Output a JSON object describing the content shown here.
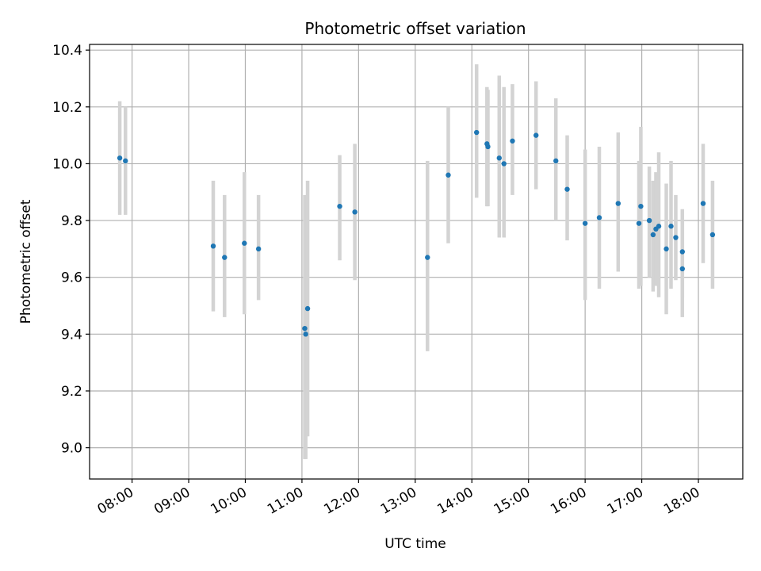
{
  "chart_data": {
    "type": "scatter",
    "title": "Photometric offset variation",
    "xlabel": "UTC time",
    "ylabel": "Photometric offset",
    "grid": true,
    "xlim": [
      "07:15",
      "18:47"
    ],
    "ylim": [
      8.89,
      10.42
    ],
    "x_ticks": [
      "08:00",
      "09:00",
      "10:00",
      "11:00",
      "12:00",
      "13:00",
      "14:00",
      "15:00",
      "16:00",
      "17:00",
      "18:00"
    ],
    "y_ticks": [
      "9.0",
      "9.2",
      "9.4",
      "9.6",
      "9.8",
      "10.0",
      "10.2",
      "10.4"
    ],
    "colors": {
      "point": "#1f77b4",
      "errorbar": "#d3d3d3",
      "grid": "#b0b0b0"
    },
    "points": [
      {
        "x": "07:47",
        "y": 10.02,
        "ylow": 9.82,
        "yhigh": 10.22
      },
      {
        "x": "07:53",
        "y": 10.01,
        "ylow": 9.82,
        "yhigh": 10.2
      },
      {
        "x": "09:26",
        "y": 9.71,
        "ylow": 9.48,
        "yhigh": 9.94
      },
      {
        "x": "09:38",
        "y": 9.67,
        "ylow": 9.46,
        "yhigh": 9.89
      },
      {
        "x": "09:59",
        "y": 9.72,
        "ylow": 9.47,
        "yhigh": 9.97
      },
      {
        "x": "10:14",
        "y": 9.7,
        "ylow": 9.52,
        "yhigh": 9.89
      },
      {
        "x": "11:03",
        "y": 9.42,
        "ylow": 8.96,
        "yhigh": 9.89
      },
      {
        "x": "11:04",
        "y": 9.4,
        "ylow": 8.96,
        "yhigh": 9.85
      },
      {
        "x": "11:06",
        "y": 9.49,
        "ylow": 9.04,
        "yhigh": 9.94
      },
      {
        "x": "11:40",
        "y": 9.85,
        "ylow": 9.66,
        "yhigh": 10.03
      },
      {
        "x": "11:56",
        "y": 9.83,
        "ylow": 9.59,
        "yhigh": 10.07
      },
      {
        "x": "13:13",
        "y": 9.67,
        "ylow": 9.34,
        "yhigh": 10.01
      },
      {
        "x": "13:35",
        "y": 9.96,
        "ylow": 9.72,
        "yhigh": 10.2
      },
      {
        "x": "14:05",
        "y": 10.11,
        "ylow": 9.88,
        "yhigh": 10.35
      },
      {
        "x": "14:16",
        "y": 10.07,
        "ylow": 9.85,
        "yhigh": 10.27
      },
      {
        "x": "14:17",
        "y": 10.06,
        "ylow": 9.85,
        "yhigh": 10.26
      },
      {
        "x": "14:29",
        "y": 10.02,
        "ylow": 9.74,
        "yhigh": 10.31
      },
      {
        "x": "14:34",
        "y": 10.0,
        "ylow": 9.74,
        "yhigh": 10.27
      },
      {
        "x": "14:43",
        "y": 10.08,
        "ylow": 9.89,
        "yhigh": 10.28
      },
      {
        "x": "15:08",
        "y": 10.1,
        "ylow": 9.91,
        "yhigh": 10.29
      },
      {
        "x": "15:29",
        "y": 10.01,
        "ylow": 9.8,
        "yhigh": 10.23
      },
      {
        "x": "15:41",
        "y": 9.91,
        "ylow": 9.73,
        "yhigh": 10.1
      },
      {
        "x": "16:00",
        "y": 9.79,
        "ylow": 9.52,
        "yhigh": 10.05
      },
      {
        "x": "16:15",
        "y": 9.81,
        "ylow": 9.56,
        "yhigh": 10.06
      },
      {
        "x": "16:35",
        "y": 9.86,
        "ylow": 9.62,
        "yhigh": 10.11
      },
      {
        "x": "16:57",
        "y": 9.79,
        "ylow": 9.56,
        "yhigh": 10.01
      },
      {
        "x": "16:59",
        "y": 9.85,
        "ylow": 9.57,
        "yhigh": 10.13
      },
      {
        "x": "17:08",
        "y": 9.8,
        "ylow": 9.6,
        "yhigh": 9.99
      },
      {
        "x": "17:12",
        "y": 9.75,
        "ylow": 9.55,
        "yhigh": 9.94
      },
      {
        "x": "17:15",
        "y": 9.77,
        "ylow": 9.57,
        "yhigh": 9.97
      },
      {
        "x": "17:18",
        "y": 9.78,
        "ylow": 9.53,
        "yhigh": 10.04
      },
      {
        "x": "17:26",
        "y": 9.7,
        "ylow": 9.47,
        "yhigh": 9.93
      },
      {
        "x": "17:31",
        "y": 9.78,
        "ylow": 9.56,
        "yhigh": 10.01
      },
      {
        "x": "17:36",
        "y": 9.74,
        "ylow": 9.59,
        "yhigh": 9.89
      },
      {
        "x": "17:43",
        "y": 9.69,
        "ylow": 9.53,
        "yhigh": 9.84
      },
      {
        "x": "17:43",
        "y": 9.63,
        "ylow": 9.46,
        "yhigh": 9.8
      },
      {
        "x": "18:05",
        "y": 9.86,
        "ylow": 9.65,
        "yhigh": 10.07
      },
      {
        "x": "18:15",
        "y": 9.75,
        "ylow": 9.56,
        "yhigh": 9.94
      }
    ]
  }
}
